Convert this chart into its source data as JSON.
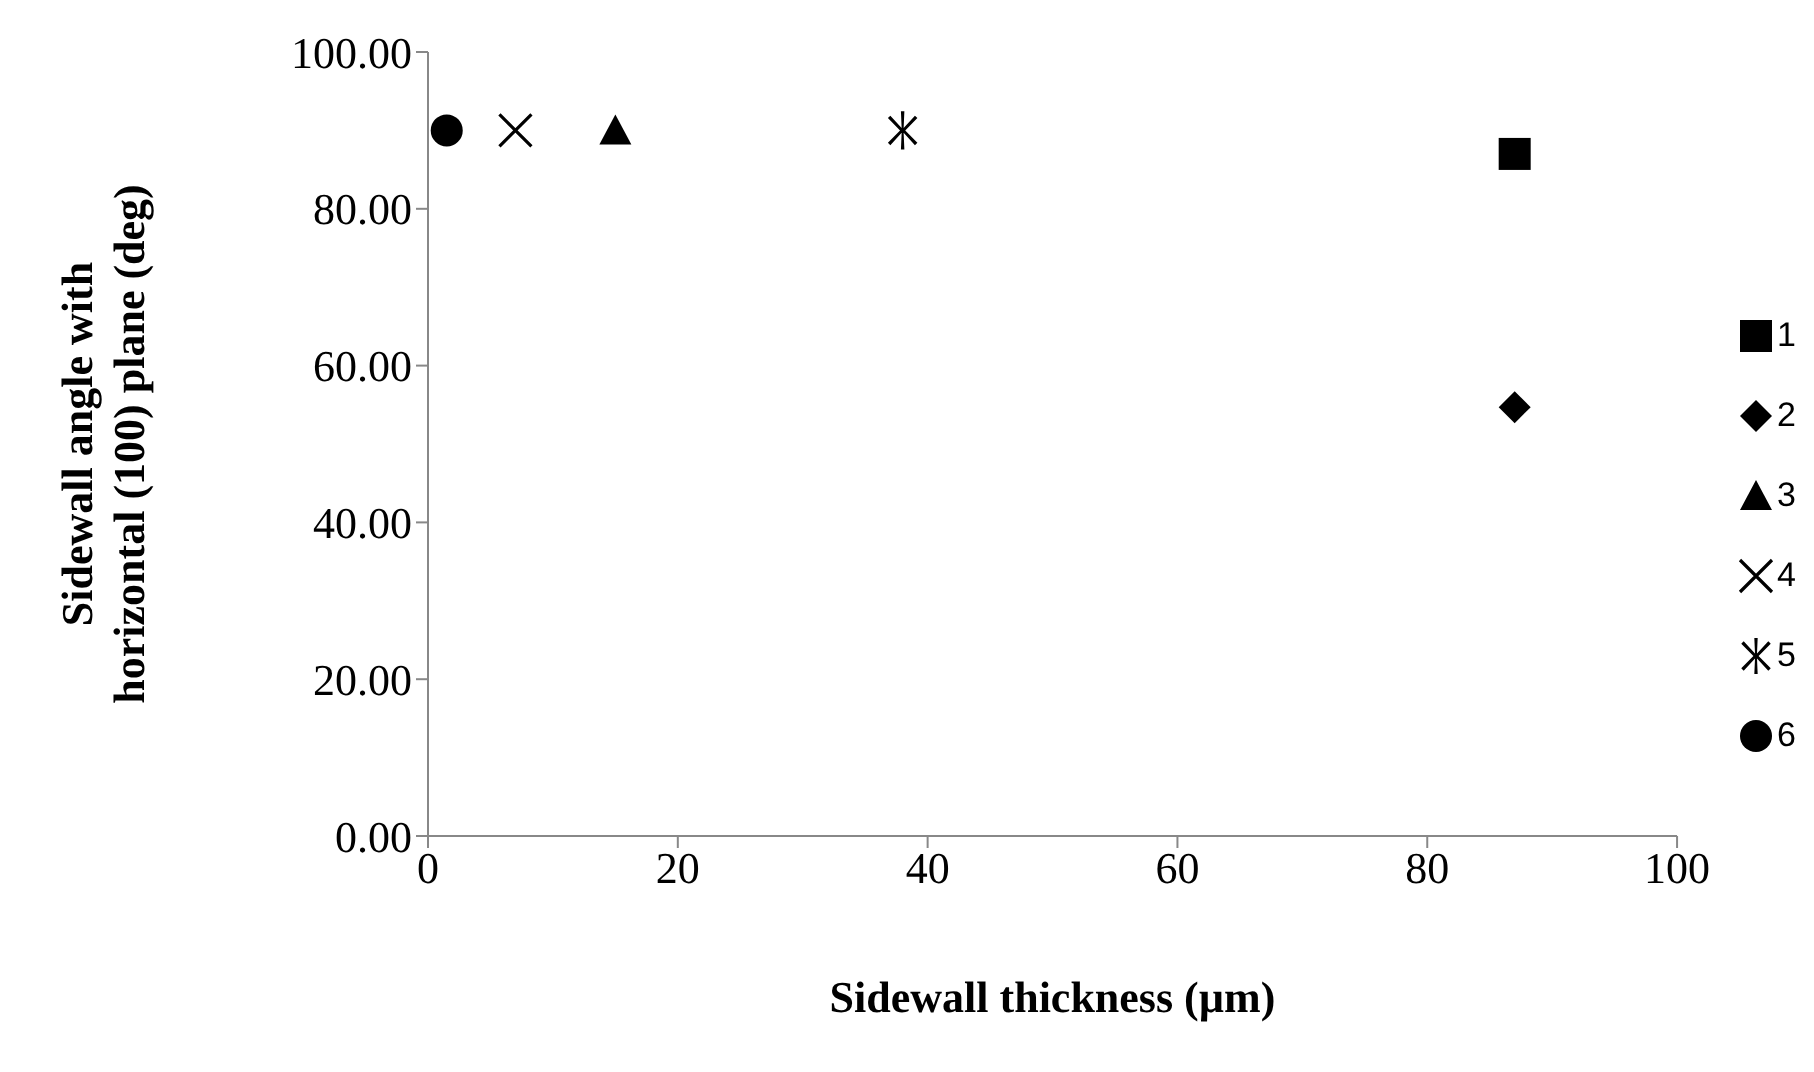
{
  "chart_data": {
    "type": "scatter",
    "xlabel": "Sidewall thickness (µm)",
    "ylabel": "Sidewall angle with horizontal (100) plane (deg)",
    "xlim": [
      0,
      100
    ],
    "xticks": [
      0,
      20,
      40,
      60,
      80,
      100
    ],
    "ylim": [
      0,
      100
    ],
    "yticks": [
      {
        "value": 0,
        "label": "0.00"
      },
      {
        "value": 20,
        "label": "20.00"
      },
      {
        "value": 40,
        "label": "40.00"
      },
      {
        "value": 60,
        "label": "60.00"
      },
      {
        "value": 80,
        "label": "80.00"
      },
      {
        "value": 100,
        "label": "100.00"
      }
    ],
    "grid": false,
    "legend": "right",
    "series": [
      {
        "name": "1",
        "color": "#000000",
        "marker": "square",
        "x": [
          87
        ],
        "values": [
          87
        ]
      },
      {
        "name": "2",
        "color": "#000000",
        "marker": "diamond",
        "x": [
          87
        ],
        "values": [
          54.7
        ]
      },
      {
        "name": "3",
        "color": "#000000",
        "marker": "triangle",
        "x": [
          15
        ],
        "values": [
          90
        ]
      },
      {
        "name": "4",
        "color": "#000000",
        "marker": "cross",
        "x": [
          7
        ],
        "values": [
          90
        ]
      },
      {
        "name": "5",
        "color": "#000000",
        "marker": "star",
        "x": [
          38
        ],
        "values": [
          90
        ]
      },
      {
        "name": "6",
        "color": "#000000",
        "marker": "circle",
        "x": [
          1.5
        ],
        "values": [
          90
        ]
      }
    ]
  }
}
